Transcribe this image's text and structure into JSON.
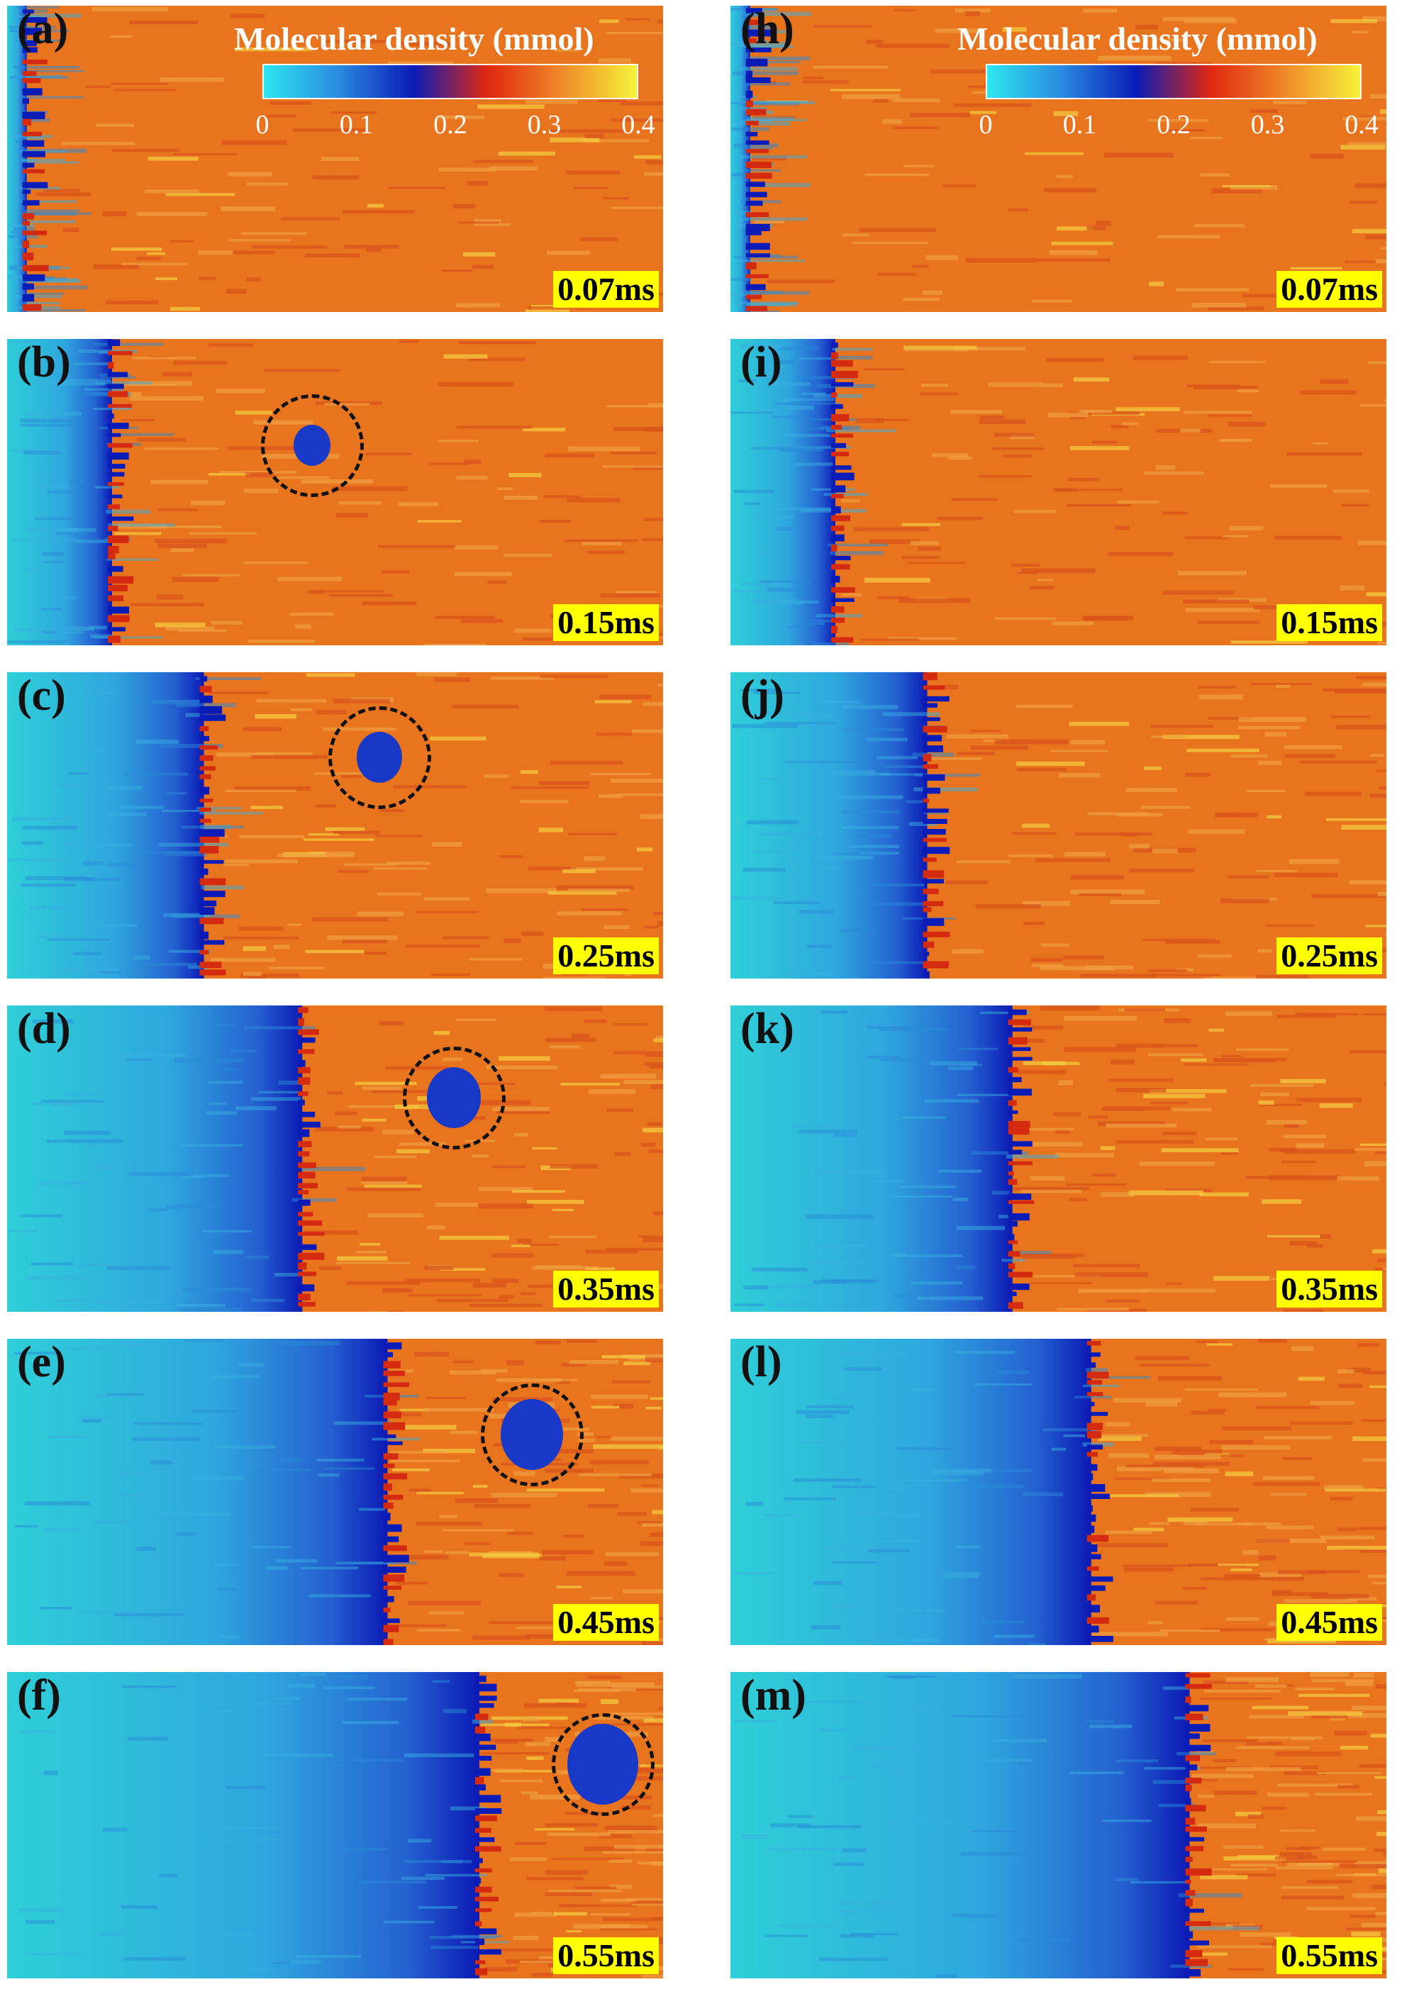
{
  "colorbar": {
    "title": "Molecular density (mmol)",
    "ticks": [
      "0",
      "0.1",
      "0.2",
      "0.3",
      "0.4"
    ],
    "range": [
      0,
      0.4
    ],
    "colors": [
      "#2ee6f0",
      "#2a8ae0",
      "#0a1cb8",
      "#e02810",
      "#f08a2a",
      "#f8f23a"
    ]
  },
  "panels": [
    {
      "label": "(a)",
      "time": "0.07ms",
      "front_fraction": 0.03,
      "circle": false
    },
    {
      "label": "(b)",
      "time": "0.15ms",
      "front_fraction": 0.16,
      "circle": true
    },
    {
      "label": "(c)",
      "time": "0.25ms",
      "front_fraction": 0.3,
      "circle": true
    },
    {
      "label": "(d)",
      "time": "0.35ms",
      "front_fraction": 0.45,
      "circle": true
    },
    {
      "label": "(e)",
      "time": "0.45ms",
      "front_fraction": 0.58,
      "circle": true
    },
    {
      "label": "(f)",
      "time": "0.55ms",
      "front_fraction": 0.72,
      "circle": true
    },
    {
      "label": "(h)",
      "time": "0.07ms",
      "front_fraction": 0.03,
      "circle": false
    },
    {
      "label": "(i)",
      "time": "0.15ms",
      "front_fraction": 0.16,
      "circle": false
    },
    {
      "label": "(j)",
      "time": "0.25ms",
      "front_fraction": 0.3,
      "circle": false
    },
    {
      "label": "(k)",
      "time": "0.35ms",
      "front_fraction": 0.43,
      "circle": false
    },
    {
      "label": "(l)",
      "time": "0.45ms",
      "front_fraction": 0.55,
      "circle": false
    },
    {
      "label": "(m)",
      "time": "0.55ms",
      "front_fraction": 0.7,
      "circle": false
    }
  ]
}
